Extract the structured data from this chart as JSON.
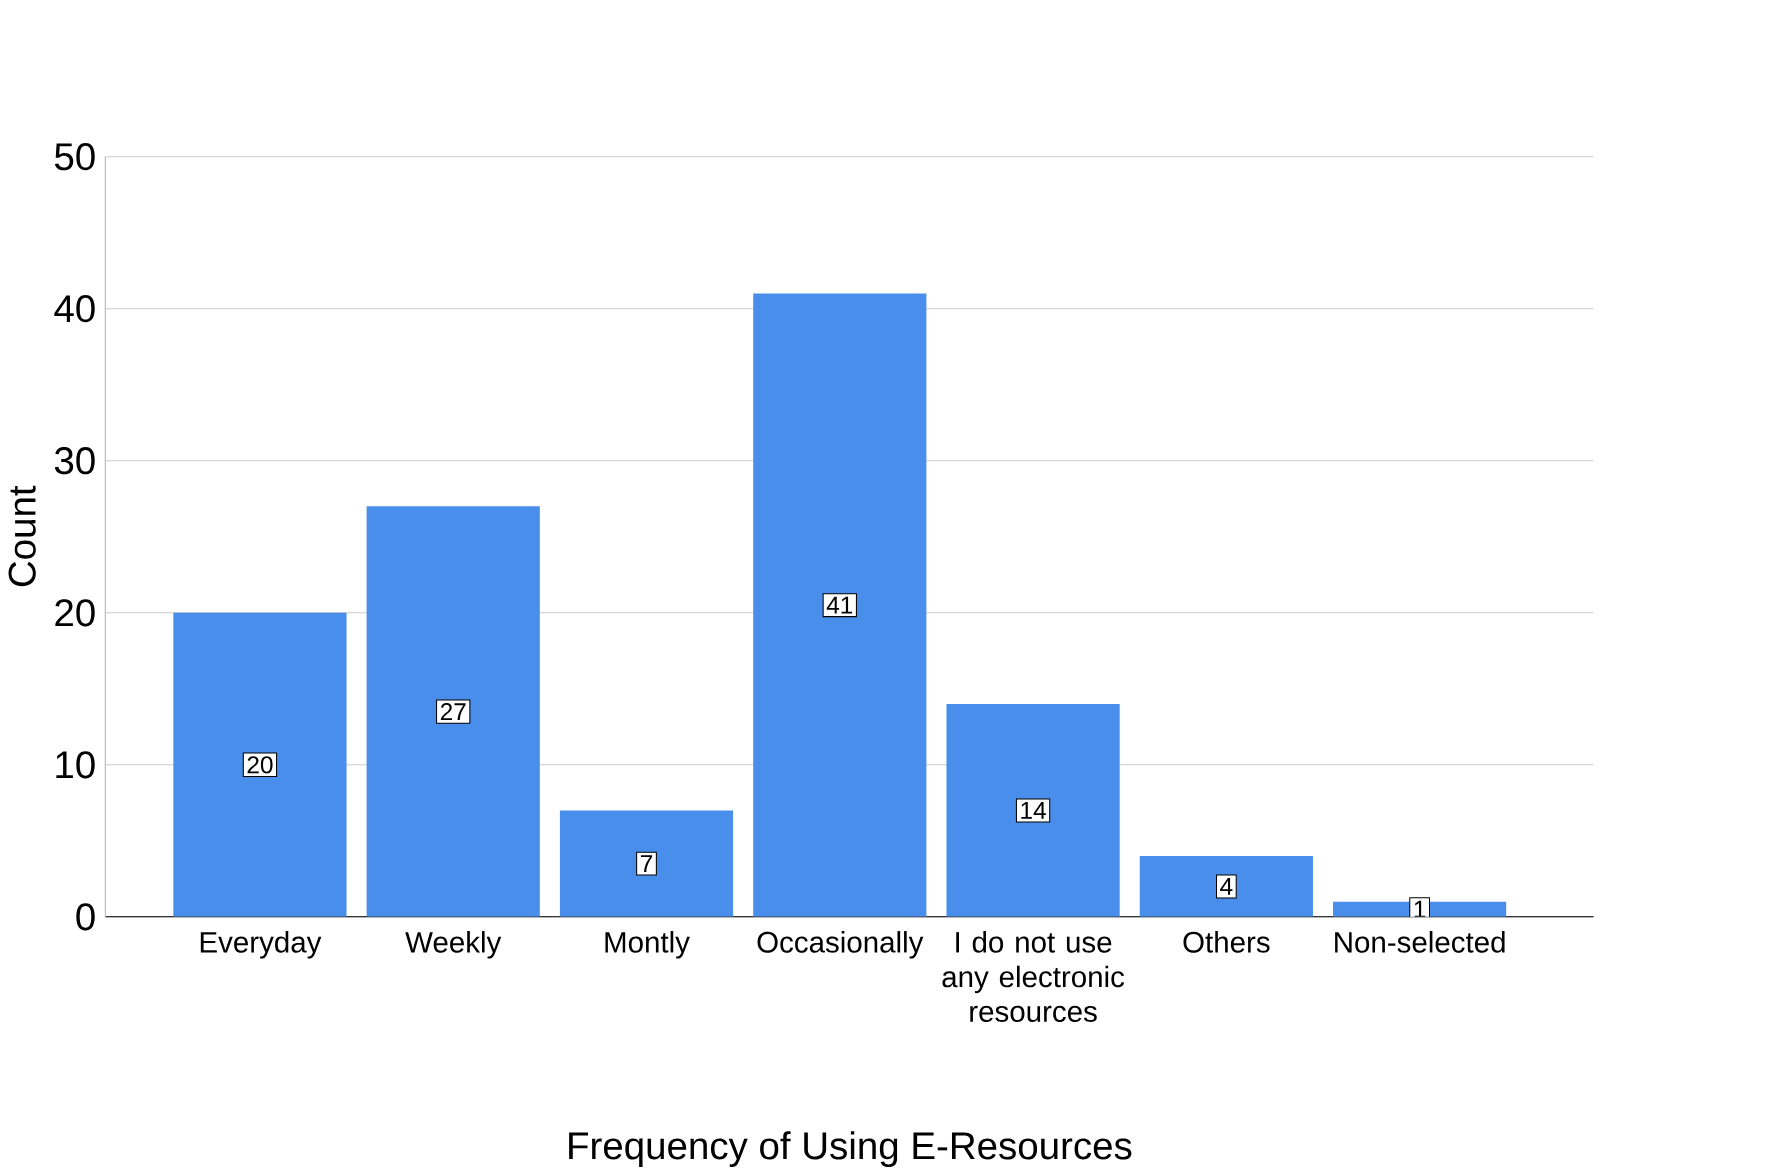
{
  "chart_data": {
    "type": "bar",
    "xlabel": "Frequency of Using E-Resources",
    "ylabel": "Count",
    "categories": [
      "Everyday",
      "Weekly",
      "Montly",
      "Occasionally",
      "I do not use any electronic resources",
      "Others",
      "Non-selected"
    ],
    "values": [
      20,
      27,
      7,
      41,
      14,
      4,
      1
    ],
    "color": "#4a8eec",
    "ylim": [
      0,
      50
    ],
    "yticks": [
      0,
      10,
      20,
      30,
      40,
      50
    ],
    "grid": "y",
    "data_labels": true
  }
}
